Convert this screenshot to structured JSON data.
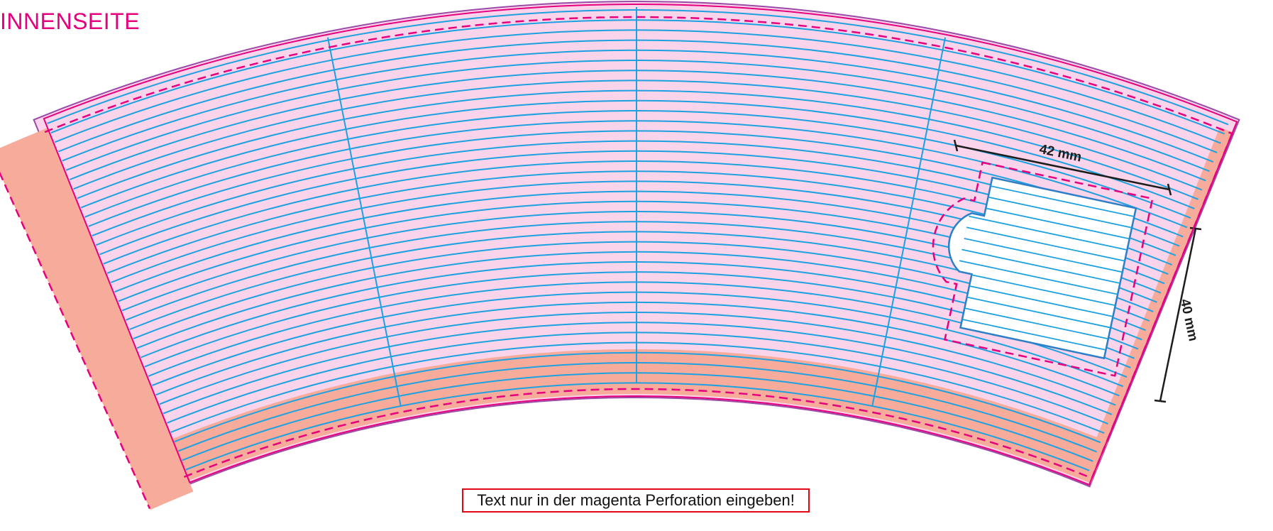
{
  "header": {
    "title": "INNENSEITE"
  },
  "notice": {
    "text": "Text nur in der magenta Perforation eingeben!"
  },
  "dimensions": {
    "width_label": "42 mm",
    "height_label": "40 mm"
  },
  "colors": {
    "background_fill": "#f9d4ea",
    "bleed_fill": "#f7ab9a",
    "outline_magenta": "#e6007e",
    "outline_purple": "#9b4aa8",
    "guide_blue": "#1da1e0",
    "window_blue": "#2d7fc8",
    "dimension_line": "#1d1d1b",
    "notice_border": "#e30613"
  }
}
